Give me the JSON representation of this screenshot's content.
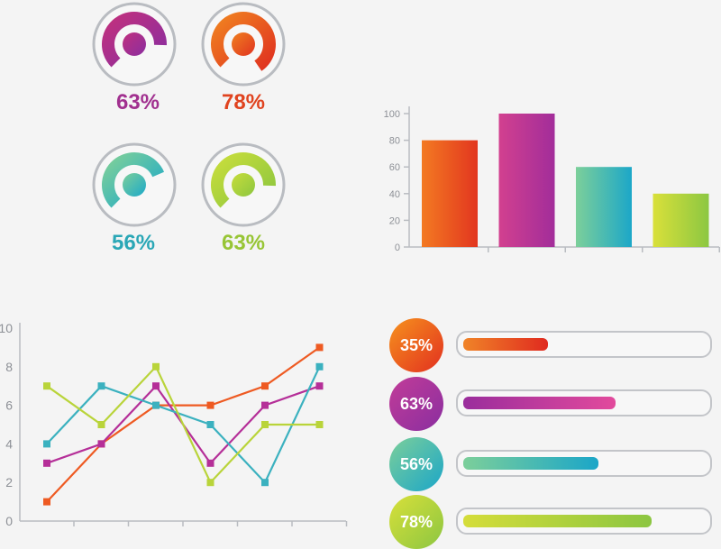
{
  "gauges": [
    {
      "label": "63%",
      "value": 63,
      "color": "#a1308f",
      "from": "#c0307e",
      "to": "#8a2ea0"
    },
    {
      "label": "78%",
      "value": 78,
      "color": "#e0431f",
      "from": "#f08020",
      "to": "#e03320"
    },
    {
      "label": "56%",
      "value": 56,
      "color": "#2aa7b6",
      "from": "#7ccf9a",
      "to": "#1ca9c9"
    },
    {
      "label": "63%",
      "value": 63,
      "color": "#97c535",
      "from": "#c7dd3b",
      "to": "#8cc640"
    }
  ],
  "progress": [
    {
      "label": "35%",
      "value": 35,
      "from": "#f08428",
      "to": "#e02a1f"
    },
    {
      "label": "63%",
      "value": 63,
      "from": "#9a2d9c",
      "to": "#e24a9c"
    },
    {
      "label": "56%",
      "value": 56,
      "from": "#7ccf9a",
      "to": "#1ba6c8"
    },
    {
      "label": "78%",
      "value": 78,
      "from": "#d5dd3a",
      "to": "#8cc641"
    }
  ],
  "chart_data": [
    {
      "type": "bar",
      "categories": [
        "",
        "",
        "",
        ""
      ],
      "values": [
        80,
        100,
        60,
        40
      ],
      "ylim": [
        0,
        100
      ],
      "yticks": [
        "0",
        "20",
        "40",
        "60",
        "80",
        "100"
      ],
      "colors": [
        [
          "#f37a22",
          "#e2361f"
        ],
        [
          "#d2408f",
          "#a22d9a"
        ],
        [
          "#7ccf9a",
          "#1ca7c8"
        ],
        [
          "#d9e03a",
          "#8cc742"
        ]
      ]
    },
    {
      "type": "line",
      "x": [
        1,
        2,
        3,
        4,
        5,
        6
      ],
      "ylim": [
        0,
        10
      ],
      "yticks": [
        "0",
        "2",
        "4",
        "6",
        "8",
        "10"
      ],
      "series": [
        {
          "values": [
            1,
            4,
            6,
            6,
            7,
            9
          ],
          "color": "#ee5a22"
        },
        {
          "values": [
            3,
            4,
            7,
            3,
            6,
            7
          ],
          "color": "#b52f98"
        },
        {
          "values": [
            4,
            7,
            6,
            5,
            2,
            8
          ],
          "color": "#3bb1bf"
        },
        {
          "values": [
            7,
            5,
            8,
            2,
            5,
            5
          ],
          "color": "#b9d43a"
        }
      ]
    }
  ]
}
